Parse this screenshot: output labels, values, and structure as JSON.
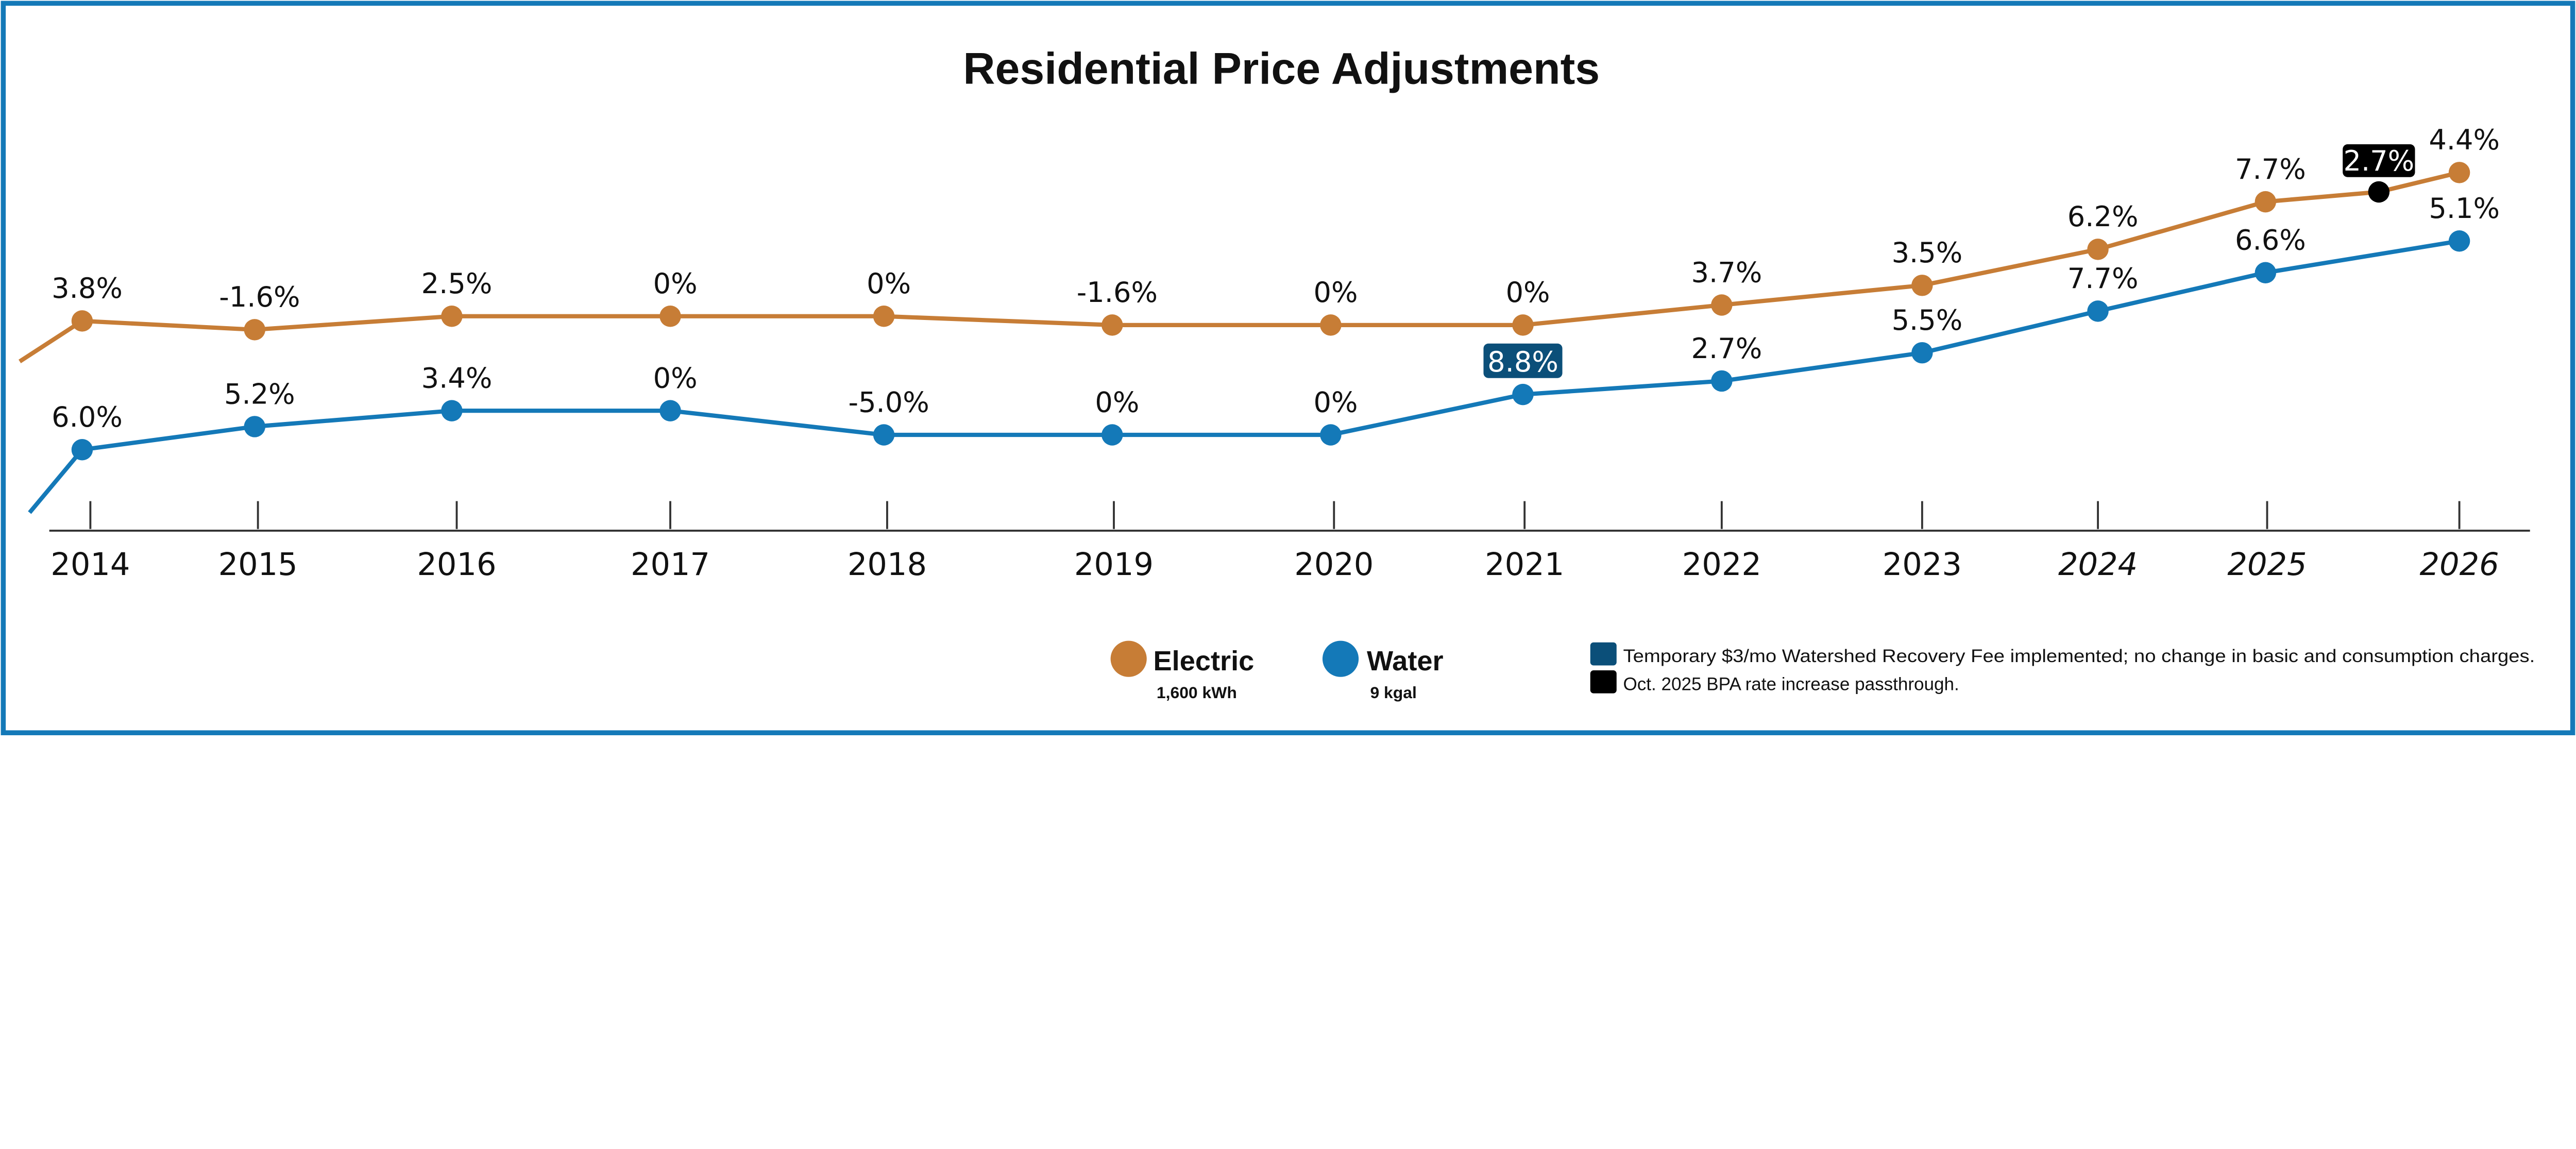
{
  "chart_data": {
    "type": "line",
    "title": "Residential Price Adjustments",
    "categories": [
      "2014",
      "2015",
      "2016",
      "2017",
      "2018",
      "2019",
      "2020",
      "2021",
      "2022",
      "2023",
      "2024",
      "2025",
      "2026"
    ],
    "projected_categories": [
      "2024",
      "2025",
      "2026"
    ],
    "grid": false,
    "legend_placement": "bottom",
    "series": [
      {
        "name": "Electric",
        "unit": "1,600 kWh",
        "color": "#c77d36",
        "values": [
          3.8,
          -1.6,
          2.5,
          0,
          0,
          -1.6,
          0,
          0,
          3.7,
          3.5,
          6.2,
          7.7,
          4.4
        ],
        "labels": [
          "3.8%",
          "-1.6%",
          "2.5%",
          "0%",
          "0%",
          "-1.6%",
          "0%",
          "0%",
          "3.7%",
          "3.5%",
          "6.2%",
          "7.7%",
          "4.4%"
        ]
      },
      {
        "name": "Water",
        "unit": "9 kgal",
        "color": "#1479b8",
        "values": [
          6.0,
          5.2,
          3.4,
          0,
          -5.0,
          0,
          0,
          8.8,
          2.7,
          5.5,
          7.7,
          6.6,
          5.1
        ],
        "labels": [
          "6.0%",
          "5.2%",
          "3.4%",
          "0%",
          "-5.0%",
          "0%",
          "0%",
          "8.8%",
          "2.7%",
          "5.5%",
          "7.7%",
          "6.6%",
          "5.1%"
        ]
      }
    ],
    "annotations": [
      {
        "series": "Water",
        "category": "2021",
        "label": "8.8%",
        "color": "#0b4f79",
        "note": "Temporary $3/mo Watershed Recovery Fee implemented; no change in basic and consumption charges."
      },
      {
        "series": "Electric",
        "between": [
          "2025",
          "2026"
        ],
        "value": 2.7,
        "label": "2.7%",
        "color": "#000000",
        "note": "Oct. 2025 BPA rate increase passthrough."
      }
    ]
  },
  "frame_color": "#1479b8"
}
